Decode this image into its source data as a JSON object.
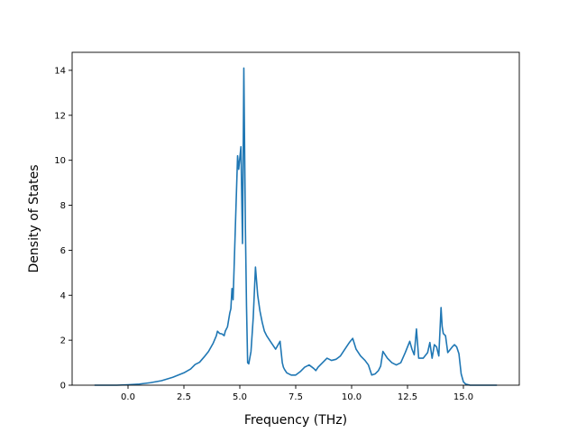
{
  "chart_data": {
    "type": "line",
    "title": "",
    "xlabel": "Frequency (THz)",
    "ylabel": "Density of States",
    "xlim": [
      -2.5,
      17.5
    ],
    "ylim": [
      0,
      14.8
    ],
    "xticks": [
      0.0,
      2.5,
      5.0,
      7.5,
      10.0,
      12.5,
      15.0
    ],
    "xtick_labels": [
      "0.0",
      "2.5",
      "5.0",
      "7.5",
      "10.0",
      "12.5",
      "15.0"
    ],
    "yticks": [
      0,
      2,
      4,
      6,
      8,
      10,
      12,
      14
    ],
    "ytick_labels": [
      "0",
      "2",
      "4",
      "6",
      "8",
      "10",
      "12",
      "14"
    ],
    "grid": false,
    "legend": "none",
    "series": [
      {
        "color": "#1f77b4",
        "x": [
          -1.5,
          -0.5,
          0.0,
          0.5,
          1.0,
          1.5,
          2.0,
          2.5,
          2.8,
          3.0,
          3.2,
          3.4,
          3.6,
          3.8,
          3.95,
          4.0,
          4.1,
          4.2,
          4.3,
          4.35,
          4.45,
          4.55,
          4.6,
          4.65,
          4.7,
          4.8,
          4.9,
          4.95,
          5.05,
          5.12,
          5.18,
          5.25,
          5.3,
          5.35,
          5.4,
          5.5,
          5.6,
          5.7,
          5.8,
          5.9,
          6.0,
          6.1,
          6.2,
          6.4,
          6.6,
          6.8,
          6.9,
          6.95,
          7.0,
          7.1,
          7.2,
          7.3,
          7.5,
          7.7,
          7.9,
          8.1,
          8.3,
          8.4,
          8.5,
          8.7,
          8.9,
          9.1,
          9.3,
          9.5,
          9.7,
          9.9,
          10.05,
          10.2,
          10.4,
          10.6,
          10.75,
          10.9,
          11.05,
          11.2,
          11.3,
          11.4,
          11.6,
          11.8,
          12.0,
          12.2,
          12.4,
          12.6,
          12.7,
          12.8,
          12.9,
          13.0,
          13.2,
          13.4,
          13.5,
          13.6,
          13.7,
          13.8,
          13.9,
          14.0,
          14.05,
          14.1,
          14.2,
          14.3,
          14.5,
          14.6,
          14.7,
          14.8,
          14.9,
          15.0,
          15.1,
          15.3,
          16.5
        ],
        "y": [
          0.0,
          0.0,
          0.02,
          0.05,
          0.11,
          0.2,
          0.35,
          0.55,
          0.72,
          0.92,
          1.02,
          1.25,
          1.5,
          1.85,
          2.2,
          2.4,
          2.3,
          2.28,
          2.2,
          2.4,
          2.6,
          3.2,
          3.4,
          4.3,
          3.8,
          7.0,
          10.2,
          9.6,
          10.6,
          6.3,
          14.1,
          7.0,
          3.5,
          1.0,
          0.95,
          1.5,
          3.0,
          5.25,
          4.0,
          3.3,
          2.8,
          2.4,
          2.2,
          1.9,
          1.6,
          1.95,
          1.0,
          0.8,
          0.7,
          0.55,
          0.5,
          0.45,
          0.45,
          0.6,
          0.8,
          0.9,
          0.75,
          0.65,
          0.8,
          1.0,
          1.2,
          1.1,
          1.15,
          1.3,
          1.6,
          1.9,
          2.08,
          1.6,
          1.3,
          1.1,
          0.9,
          0.45,
          0.5,
          0.65,
          0.85,
          1.5,
          1.2,
          1.0,
          0.9,
          1.0,
          1.45,
          1.95,
          1.6,
          1.35,
          2.5,
          1.2,
          1.2,
          1.45,
          1.9,
          1.2,
          1.8,
          1.7,
          1.3,
          3.45,
          2.6,
          2.3,
          2.2,
          1.45,
          1.7,
          1.8,
          1.7,
          1.4,
          0.5,
          0.15,
          0.05,
          0.0,
          0.0
        ]
      }
    ]
  }
}
